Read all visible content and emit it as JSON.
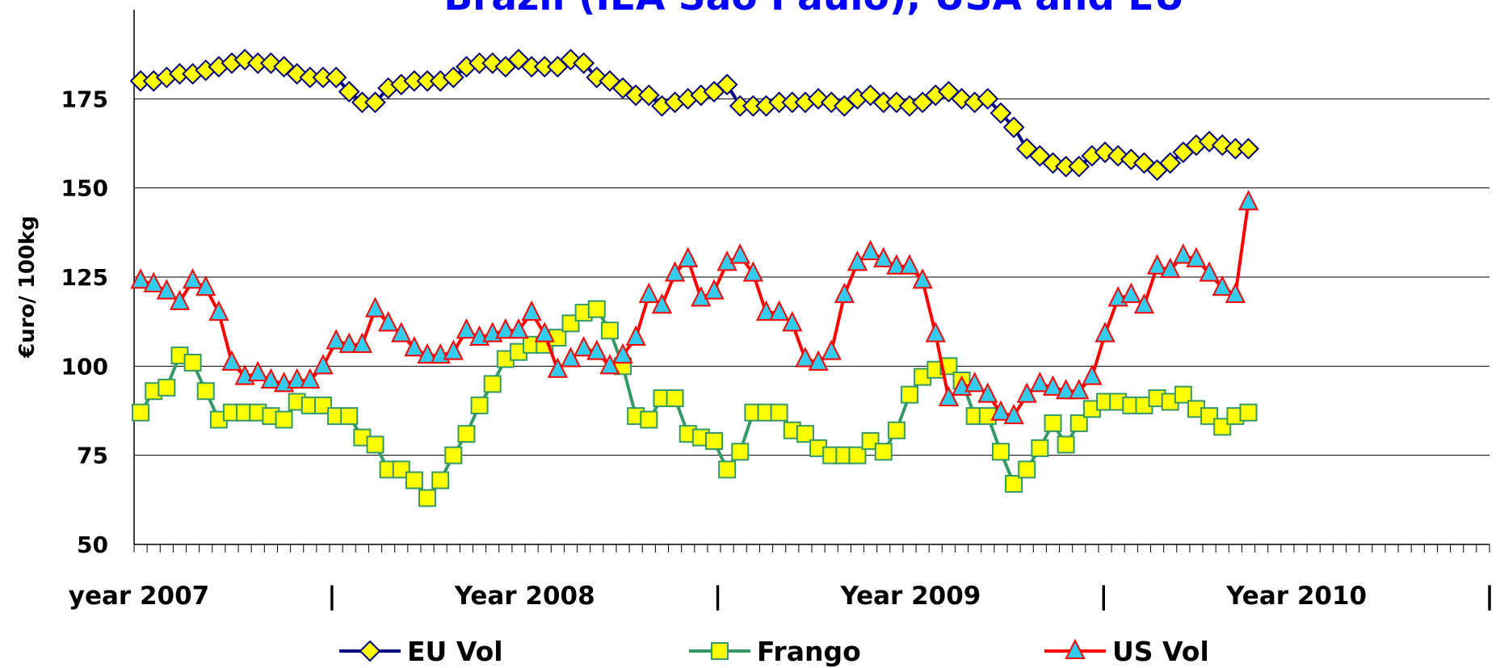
{
  "chart_data": {
    "type": "line",
    "title": "Brazil (IEA São Paulo), USA and EU",
    "title_color": "#0000ff",
    "y_label": "€uro/ 100kg",
    "x_labels": [
      "year 2007",
      "|",
      "Year 2008",
      "|",
      "Year 2009",
      "|",
      "Year 2010",
      "|"
    ],
    "x": [
      1,
      3,
      5,
      7,
      9,
      11,
      13,
      15,
      17,
      19,
      21,
      23,
      25,
      27,
      29,
      31,
      33,
      35,
      37,
      39,
      41,
      43,
      45,
      47,
      49,
      51,
      53,
      55,
      57,
      59,
      61,
      63,
      65,
      67,
      69,
      71,
      73,
      75,
      77,
      79,
      81,
      83,
      85,
      87,
      89,
      91,
      93,
      95,
      97,
      99,
      101,
      103,
      105,
      107,
      109,
      111,
      113,
      115,
      117,
      119,
      121,
      123,
      125,
      127,
      129,
      131,
      133,
      135,
      137,
      139,
      141,
      143,
      145,
      147,
      149,
      151,
      153,
      155,
      157,
      159,
      161,
      163,
      165,
      167,
      169,
      171
    ],
    "xlim": [
      0,
      208
    ],
    "xticks": [
      0,
      2,
      4,
      6,
      8,
      10,
      12,
      14,
      16,
      18,
      20,
      22,
      24,
      26,
      28,
      30,
      32,
      34,
      36,
      38,
      40,
      42,
      44,
      46,
      48,
      50,
      52,
      54,
      56,
      58,
      60,
      62,
      64,
      66,
      68,
      70,
      72,
      74,
      76,
      78,
      80,
      82,
      84,
      86,
      88,
      90,
      92,
      94,
      96,
      98,
      100,
      102,
      104,
      106,
      108,
      110,
      112,
      114,
      116,
      118,
      120,
      122,
      124,
      126,
      128,
      130,
      132,
      134,
      136,
      138,
      140,
      142,
      144,
      146,
      148,
      150,
      152,
      154,
      156,
      158,
      160,
      162,
      164,
      166,
      168,
      170,
      172,
      174,
      176,
      178,
      180,
      182,
      184,
      186,
      188,
      190,
      192,
      194,
      196,
      198,
      200,
      202,
      204,
      206,
      208
    ],
    "ylim": [
      50,
      200
    ],
    "yticks": [
      50,
      75,
      100,
      125,
      150,
      175
    ],
    "grid": true,
    "legend": "bottom",
    "series": [
      {
        "name": "EU Vol",
        "color": "#000080",
        "marker": "diamond",
        "marker_fill": "#ffff00",
        "values": [
          180,
          180,
          181,
          182,
          182,
          183,
          184,
          185,
          186,
          185,
          185,
          184,
          182,
          181,
          181,
          181,
          177,
          174,
          174,
          178,
          179,
          180,
          180,
          180,
          181,
          184,
          185,
          185,
          184,
          186,
          184,
          184,
          184,
          186,
          185,
          181,
          180,
          178,
          176,
          176,
          173,
          174,
          175,
          176,
          177,
          179,
          173,
          173,
          173,
          174,
          174,
          174,
          175,
          174,
          173,
          175,
          176,
          174,
          174,
          173,
          174,
          176,
          177,
          175,
          174,
          175,
          171,
          167,
          161,
          159,
          157,
          156,
          156,
          159,
          160,
          159,
          158,
          157,
          155,
          157,
          160,
          162,
          163,
          162,
          161,
          161
        ]
      },
      {
        "name": "Frango",
        "color": "#339966",
        "marker": "square",
        "marker_fill": "#ffff00",
        "values": [
          87,
          93,
          94,
          103,
          101,
          93,
          85,
          87,
          87,
          87,
          86,
          85,
          90,
          89,
          89,
          86,
          86,
          80,
          78,
          71,
          71,
          68,
          63,
          68,
          75,
          81,
          89,
          95,
          102,
          104,
          106,
          106,
          108,
          112,
          115,
          116,
          110,
          100,
          86,
          85,
          91,
          91,
          81,
          80,
          79,
          71,
          76,
          87,
          87,
          87,
          82,
          81,
          77,
          75,
          75,
          75,
          79,
          76,
          82,
          92,
          97,
          99,
          100,
          96,
          86,
          86,
          76,
          67,
          71,
          77,
          84,
          78,
          84,
          88,
          90,
          90,
          89,
          89,
          91,
          90,
          92,
          88,
          86,
          83,
          86,
          87
        ]
      },
      {
        "name": "US Vol",
        "color": "#ff0000",
        "marker": "triangle",
        "marker_fill": "#33ccee",
        "values": [
          124,
          123,
          121,
          118,
          124,
          122,
          115,
          101,
          97,
          98,
          96,
          95,
          96,
          96,
          100,
          107,
          106,
          106,
          116,
          112,
          109,
          105,
          103,
          103,
          104,
          110,
          108,
          109,
          110,
          110,
          115,
          109,
          99,
          102,
          105,
          104,
          100,
          103,
          108,
          120,
          117,
          126,
          130,
          119,
          121,
          129,
          131,
          126,
          115,
          115,
          112,
          102,
          101,
          104,
          120,
          129,
          132,
          130,
          128,
          128,
          124,
          109,
          91,
          94,
          95,
          92,
          87,
          86,
          92,
          95,
          94,
          93,
          93,
          97,
          109,
          119,
          120,
          117,
          128,
          127,
          131,
          130,
          126,
          122,
          120,
          146
        ]
      }
    ]
  }
}
